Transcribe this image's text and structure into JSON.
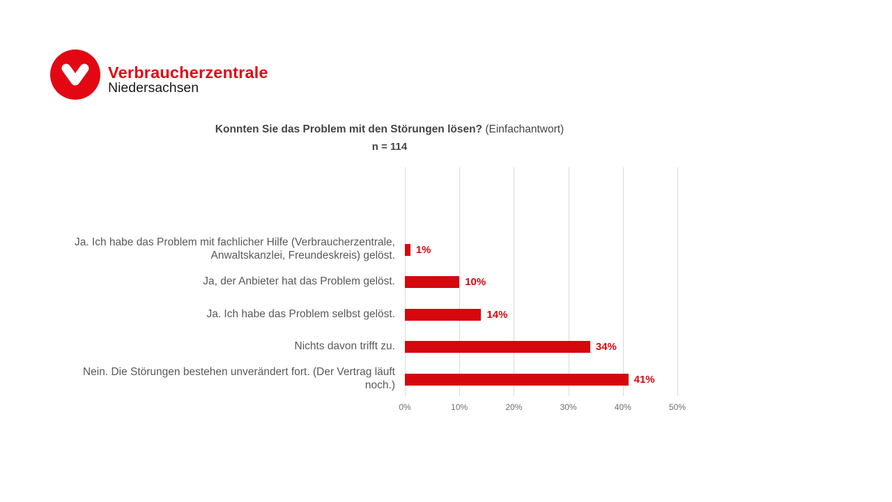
{
  "logo": {
    "brand": "Verbraucherzentrale",
    "region": "Niedersachsen",
    "brand_color": "#e30613"
  },
  "chart_data": {
    "type": "bar",
    "orientation": "horizontal",
    "title": "Konnten Sie das Problem mit den Störungen lösen?",
    "title_suffix": "(Einfachantwort)",
    "subtitle": "n = 114",
    "categories": [
      "Ja. Ich habe das Problem mit fachlicher Hilfe (Verbraucherzentrale, Anwaltskanzlei, Freundeskreis) gelöst.",
      "Ja, der Anbieter hat das Problem gelöst.",
      "Ja. Ich habe das Problem selbst gelöst.",
      "Nichts davon trifft zu.",
      "Nein. Die Störungen bestehen unverändert fort. (Der Vertrag läuft noch.)"
    ],
    "values": [
      1,
      10,
      14,
      34,
      41
    ],
    "value_labels": [
      "1%",
      "10%",
      "14%",
      "34%",
      "41%"
    ],
    "xlim": [
      0,
      50
    ],
    "x_tick_values": [
      0,
      10,
      20,
      30,
      40,
      50
    ],
    "x_tick_labels": [
      "0%",
      "10%",
      "20%",
      "30%",
      "40%",
      "50%"
    ],
    "grid": true,
    "legend": false,
    "bar_color": "#d5080e",
    "value_label_color": "#d5080e",
    "category_label_color": "#595959",
    "axis_label_color": "#6e6e6e",
    "gridline_color": "#d9d9d9"
  }
}
